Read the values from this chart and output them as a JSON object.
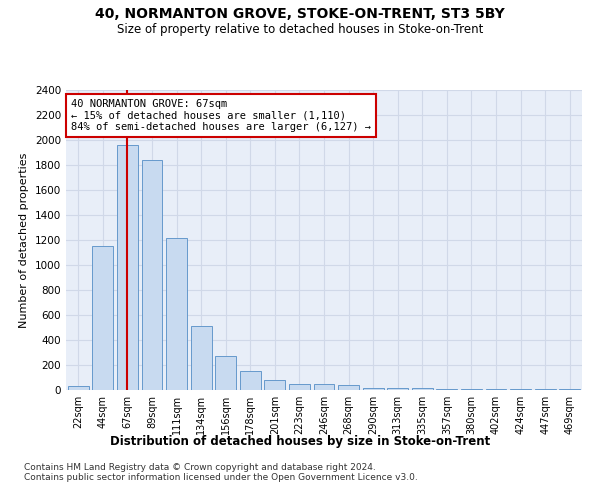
{
  "title": "40, NORMANTON GROVE, STOKE-ON-TRENT, ST3 5BY",
  "subtitle": "Size of property relative to detached houses in Stoke-on-Trent",
  "xlabel": "Distribution of detached houses by size in Stoke-on-Trent",
  "ylabel": "Number of detached properties",
  "categories": [
    "22sqm",
    "44sqm",
    "67sqm",
    "89sqm",
    "111sqm",
    "134sqm",
    "156sqm",
    "178sqm",
    "201sqm",
    "223sqm",
    "246sqm",
    "268sqm",
    "290sqm",
    "313sqm",
    "335sqm",
    "357sqm",
    "380sqm",
    "402sqm",
    "424sqm",
    "447sqm",
    "469sqm"
  ],
  "values": [
    30,
    1150,
    1960,
    1840,
    1220,
    510,
    270,
    155,
    80,
    50,
    45,
    40,
    20,
    20,
    15,
    5,
    5,
    5,
    5,
    5,
    5
  ],
  "bar_color": "#c8daf0",
  "bar_edge_color": "#6699cc",
  "property_index": 2,
  "property_line_color": "#cc0000",
  "annotation_line1": "40 NORMANTON GROVE: 67sqm",
  "annotation_line2": "← 15% of detached houses are smaller (1,110)",
  "annotation_line3": "84% of semi-detached houses are larger (6,127) →",
  "annotation_box_color": "#cc0000",
  "ylim": [
    0,
    2400
  ],
  "yticks": [
    0,
    200,
    400,
    600,
    800,
    1000,
    1200,
    1400,
    1600,
    1800,
    2000,
    2200,
    2400
  ],
  "grid_color": "#d0d8e8",
  "bg_color": "#e8eef8",
  "footnote1": "Contains HM Land Registry data © Crown copyright and database right 2024.",
  "footnote2": "Contains public sector information licensed under the Open Government Licence v3.0."
}
